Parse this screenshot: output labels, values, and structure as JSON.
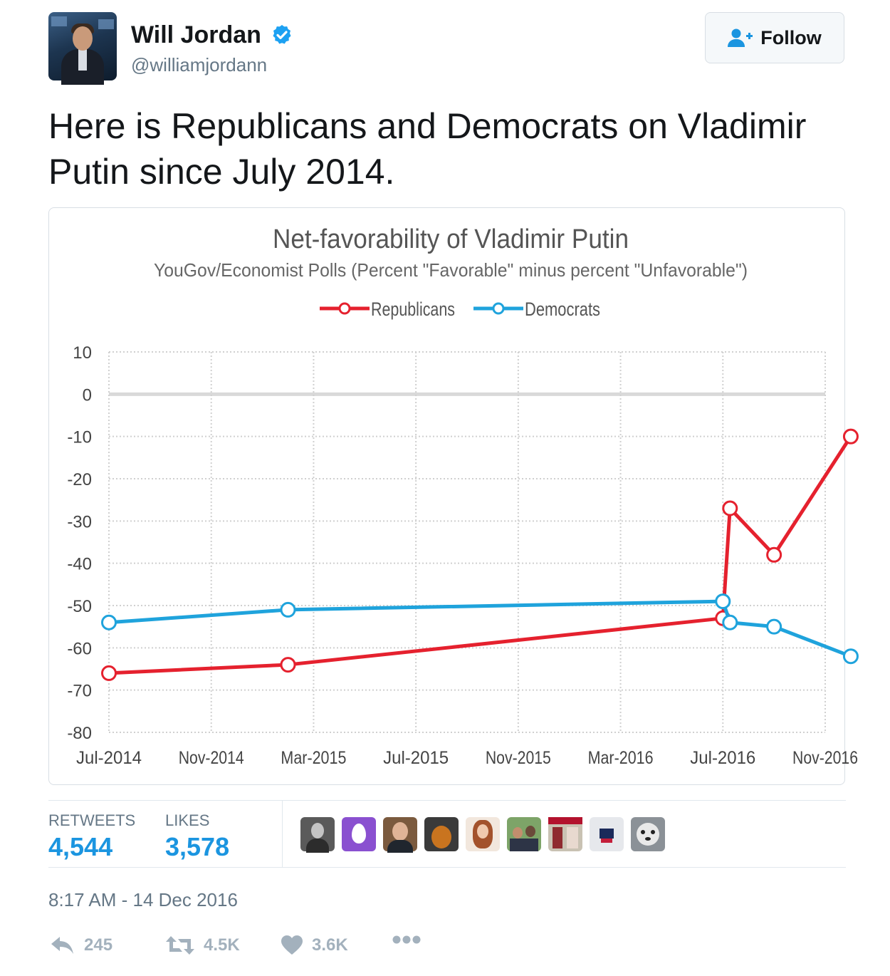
{
  "author": {
    "name": "Will Jordan",
    "handle": "@williamjordann",
    "verified": true
  },
  "follow_button": {
    "label": "Follow",
    "icon": "add-user-icon"
  },
  "tweet": {
    "text": "Here is Republicans and Democrats on Vladimir Putin since July 2014."
  },
  "chart_data": {
    "type": "line",
    "title": "Net-favorability of Vladimir Putin",
    "subtitle": "YouGov/Economist Polls (Percent \"Favorable\" minus percent \"Unfavorable\")",
    "legend_placement": "top-center",
    "grid": true,
    "ylim": [
      -80,
      10
    ],
    "yticks": [
      10,
      0,
      -10,
      -20,
      -30,
      -40,
      -50,
      -60,
      -70,
      -80
    ],
    "xticks": [
      "Jul-2014",
      "Nov-2014",
      "Mar-2015",
      "Jul-2015",
      "Nov-2015",
      "Mar-2016",
      "Jul-2016",
      "Nov-2016"
    ],
    "x_range": [
      "2014-07",
      "2016-11"
    ],
    "series": [
      {
        "name": "Republicans",
        "color": "#e5212e",
        "points": [
          {
            "x": "2014-07",
            "y": -66
          },
          {
            "x": "2015-02",
            "y": -64
          },
          {
            "x": "2016-07",
            "y": -53
          },
          {
            "x": "2016-07",
            "y": -27
          },
          {
            "x": "2016-09",
            "y": -38
          },
          {
            "x": "2016-12",
            "y": -10
          }
        ]
      },
      {
        "name": "Democrats",
        "color": "#1fa3dc",
        "points": [
          {
            "x": "2014-07",
            "y": -54
          },
          {
            "x": "2015-02",
            "y": -51
          },
          {
            "x": "2016-07",
            "y": -49
          },
          {
            "x": "2016-07",
            "y": -54
          },
          {
            "x": "2016-09",
            "y": -55
          },
          {
            "x": "2016-12",
            "y": -62
          }
        ]
      }
    ]
  },
  "stats": {
    "retweets_label": "RETWEETS",
    "retweets_value": "4,544",
    "likes_label": "LIKES",
    "likes_value": "3,578"
  },
  "likers": [
    {
      "icon": "avatar-man"
    },
    {
      "icon": "avatar-egg"
    },
    {
      "icon": "avatar-man"
    },
    {
      "icon": "avatar-object"
    },
    {
      "icon": "avatar-woman"
    },
    {
      "icon": "avatar-couple"
    },
    {
      "icon": "avatar-magazine"
    },
    {
      "icon": "avatar-jersey"
    },
    {
      "icon": "avatar-dog"
    }
  ],
  "timestamp": "8:17 AM - 14 Dec 2016",
  "actions": {
    "reply_count": "245",
    "retweet_count": "4.5K",
    "like_count": "3.6K",
    "more_icon": "more-icon"
  },
  "colors": {
    "accent": "#1b95e0",
    "muted": "#657786",
    "icon_grey": "#a3b1bd"
  }
}
